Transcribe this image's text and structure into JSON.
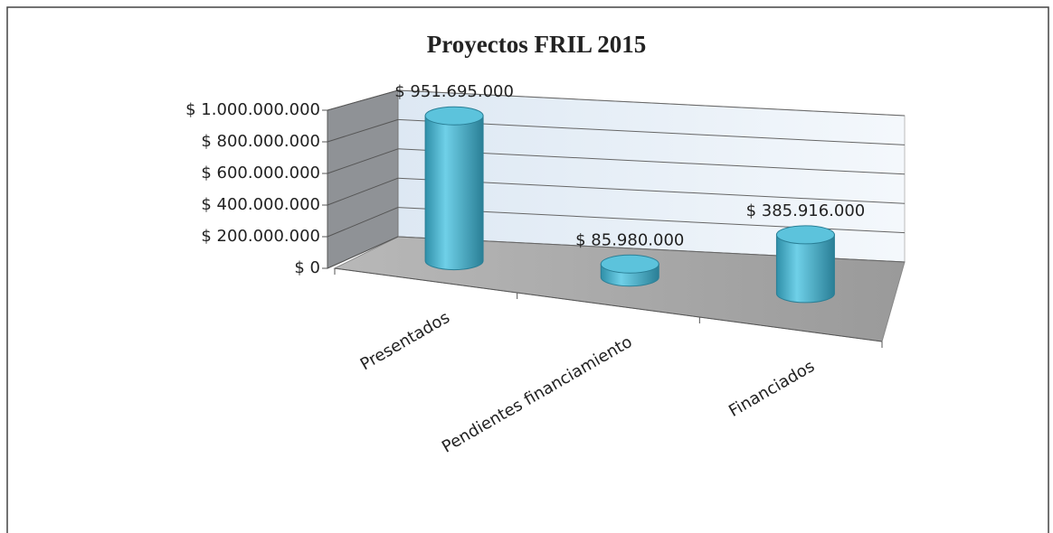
{
  "chart_data": {
    "type": "bar3d",
    "title": "Proyectos FRIL 2015",
    "categories": [
      "Presentados",
      "Pendientes financiamiento",
      "Financiados"
    ],
    "values": [
      951695000,
      85980000,
      385916000
    ],
    "value_labels": [
      "$ 951.695.000",
      "$ 85.980.000",
      "$ 385.916.000"
    ],
    "color": "#4bacc6",
    "ylim": [
      0,
      1000000000
    ],
    "yticks": [
      {
        "value": 0,
        "label": "$ 0"
      },
      {
        "value": 200000000,
        "label": "$ 200.000.000"
      },
      {
        "value": 400000000,
        "label": "$ 400.000.000"
      },
      {
        "value": 600000000,
        "label": "$ 600.000.000"
      },
      {
        "value": 800000000,
        "label": "$ 800.000.000"
      },
      {
        "value": 1000000000,
        "label": "$ 1.000.000.000"
      }
    ],
    "grid": true
  }
}
